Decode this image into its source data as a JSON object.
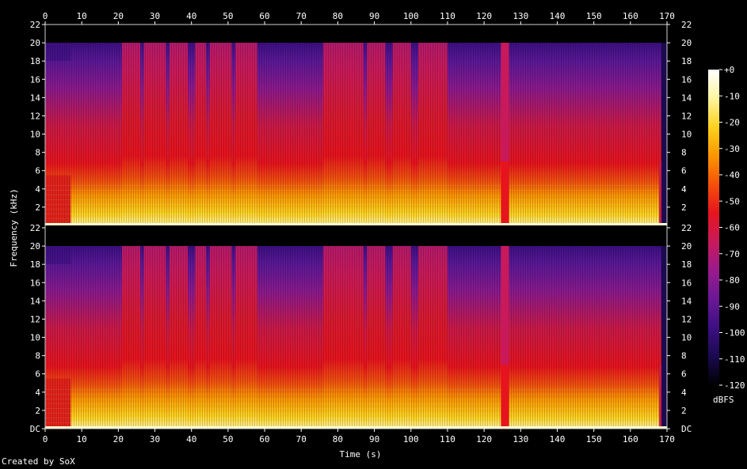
{
  "chart_data": {
    "type": "heatmap",
    "x_axis": {
      "label": "Time (s)",
      "range": [
        0,
        170
      ],
      "ticks": [
        0,
        10,
        20,
        30,
        40,
        50,
        60,
        70,
        80,
        90,
        100,
        110,
        120,
        130,
        140,
        150,
        160,
        170
      ]
    },
    "y_axis": {
      "label": "Frequency (kHz)",
      "range_khz": [
        0,
        22
      ],
      "ticks": [
        {
          "value": 0,
          "label": "DC"
        },
        {
          "value": 2,
          "label": "2"
        },
        {
          "value": 4,
          "label": "4"
        },
        {
          "value": 6,
          "label": "6"
        },
        {
          "value": 8,
          "label": "8"
        },
        {
          "value": 10,
          "label": "10"
        },
        {
          "value": 12,
          "label": "12"
        },
        {
          "value": 14,
          "label": "14"
        },
        {
          "value": 16,
          "label": "16"
        },
        {
          "value": 18,
          "label": "18"
        },
        {
          "value": 20,
          "label": "20"
        },
        {
          "value": 22,
          "label": "22"
        }
      ]
    },
    "channels": 2,
    "colorbar": {
      "unit": "dBFS",
      "range": [
        -120,
        0
      ],
      "ticks": [
        {
          "value": 0,
          "label": "+0"
        },
        {
          "value": -10,
          "label": "-10"
        },
        {
          "value": -20,
          "label": "-20"
        },
        {
          "value": -30,
          "label": "-30"
        },
        {
          "value": -40,
          "label": "-40"
        },
        {
          "value": -50,
          "label": "-50"
        },
        {
          "value": -60,
          "label": "-60"
        },
        {
          "value": -70,
          "label": "-70"
        },
        {
          "value": -80,
          "label": "-80"
        },
        {
          "value": -90,
          "label": "-90"
        },
        {
          "value": -100,
          "label": "-100"
        },
        {
          "value": -110,
          "label": "-110"
        },
        {
          "value": -120,
          "label": "-120"
        }
      ],
      "colors": [
        "#000000",
        "#1a0a50",
        "#3c0f82",
        "#6a1896",
        "#9a1a8c",
        "#c81a5a",
        "#e6141e",
        "#f5500a",
        "#fa9600",
        "#fcd21e",
        "#fff5a0",
        "#ffffff"
      ]
    },
    "full_band_segments_s": [
      [
        21,
        26
      ],
      [
        27,
        33
      ],
      [
        34,
        39
      ],
      [
        41,
        44
      ],
      [
        45,
        51
      ],
      [
        52,
        58
      ],
      [
        76,
        87
      ],
      [
        88,
        93
      ],
      [
        95,
        100
      ],
      [
        102,
        110
      ]
    ],
    "low_band_onset_s": 7,
    "gaps_s": [
      [
        124.6,
        126.8
      ]
    ],
    "end_s": 168.5
  },
  "credit": "Created by SoX"
}
